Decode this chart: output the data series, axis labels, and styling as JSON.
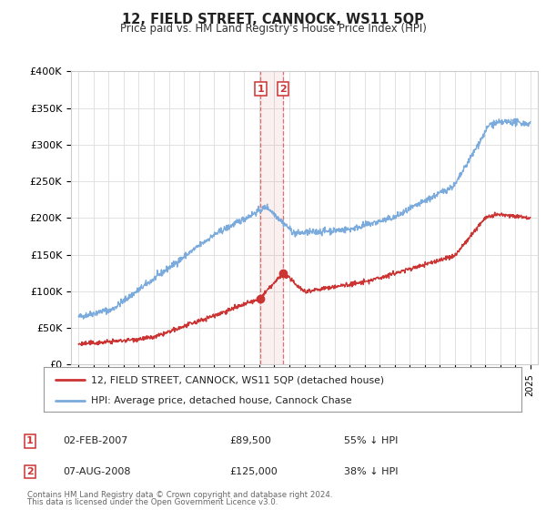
{
  "title": "12, FIELD STREET, CANNOCK, WS11 5QP",
  "subtitle": "Price paid vs. HM Land Registry's House Price Index (HPI)",
  "xlim": [
    1994.5,
    2025.5
  ],
  "ylim": [
    0,
    400000
  ],
  "yticks": [
    0,
    50000,
    100000,
    150000,
    200000,
    250000,
    300000,
    350000,
    400000
  ],
  "ytick_labels": [
    "£0",
    "£50K",
    "£100K",
    "£150K",
    "£200K",
    "£250K",
    "£300K",
    "£350K",
    "£400K"
  ],
  "hpi_color": "#7aabdc",
  "price_color": "#cc3333",
  "sale1_date": 2007.085,
  "sale1_price": 89500,
  "sale1_label": "1",
  "sale1_text": "02-FEB-2007",
  "sale1_amount": "£89,500",
  "sale1_pct": "55% ↓ HPI",
  "sale2_date": 2008.585,
  "sale2_price": 125000,
  "sale2_label": "2",
  "sale2_text": "07-AUG-2008",
  "sale2_amount": "£125,000",
  "sale2_pct": "38% ↓ HPI",
  "legend_line1": "12, FIELD STREET, CANNOCK, WS11 5QP (detached house)",
  "legend_line2": "HPI: Average price, detached house, Cannock Chase",
  "footnote1": "Contains HM Land Registry data © Crown copyright and database right 2024.",
  "footnote2": "This data is licensed under the Open Government Licence v3.0.",
  "background_color": "#ffffff",
  "plot_bg_color": "#ffffff",
  "grid_color": "#dddddd",
  "spine_color": "#cccccc"
}
